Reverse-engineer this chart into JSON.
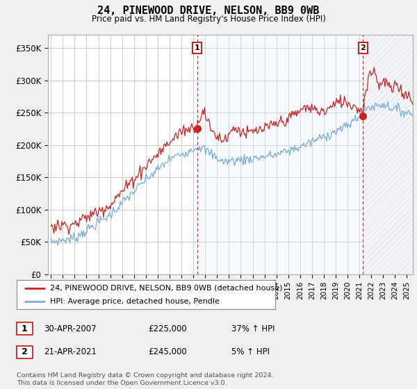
{
  "title": "24, PINEWOOD DRIVE, NELSON, BB9 0WB",
  "subtitle": "Price paid vs. HM Land Registry's House Price Index (HPI)",
  "ylabel_ticks": [
    "£0",
    "£50K",
    "£100K",
    "£150K",
    "£200K",
    "£250K",
    "£300K",
    "£350K"
  ],
  "ytick_values": [
    0,
    50000,
    100000,
    150000,
    200000,
    250000,
    300000,
    350000
  ],
  "ylim": [
    0,
    370000
  ],
  "xlim_start": 1994.75,
  "xlim_end": 2025.5,
  "hpi_color": "#7aabda",
  "price_color": "#cc2222",
  "marker1_x": 2007.33,
  "marker1_y": 225000,
  "marker2_x": 2021.3,
  "marker2_y": 245000,
  "shade_color": "#ddeeff",
  "hatch_color": "#ccddee",
  "legend_line1": "24, PINEWOOD DRIVE, NELSON, BB9 0WB (detached house)",
  "legend_line2": "HPI: Average price, detached house, Pendle",
  "table_row1": [
    "1",
    "30-APR-2007",
    "£225,000",
    "37% ↑ HPI"
  ],
  "table_row2": [
    "2",
    "21-APR-2021",
    "£245,000",
    "5% ↑ HPI"
  ],
  "footer": "Contains HM Land Registry data © Crown copyright and database right 2024.\nThis data is licensed under the Open Government Licence v3.0.",
  "bg_color": "#f0f0f0",
  "plot_bg_color": "#ffffff",
  "grid_color": "#cccccc"
}
